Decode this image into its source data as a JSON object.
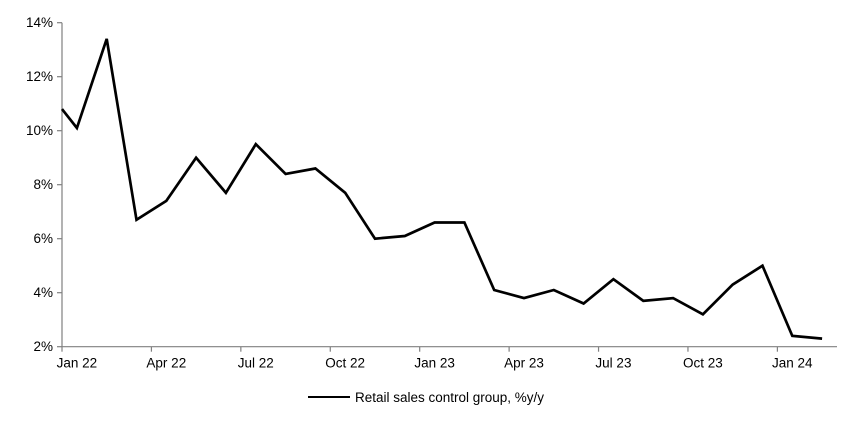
{
  "chart_data": {
    "type": "line",
    "title": "",
    "series_name": "Retail sales control group, %y/y",
    "categories": [
      "Jan 22",
      "Feb 22",
      "Mar 22",
      "Apr 22",
      "May 22",
      "Jun 22",
      "Jul 22",
      "Aug 22",
      "Sep 22",
      "Oct 22",
      "Nov 22",
      "Dec 22",
      "Jan 23",
      "Feb 23",
      "Mar 23",
      "Apr 23",
      "May 23",
      "Jun 23",
      "Jul 23",
      "Aug 23",
      "Sep 23",
      "Oct 23",
      "Nov 23",
      "Dec 23",
      "Jan 24",
      "Feb 24"
    ],
    "values": [
      10.1,
      13.4,
      6.7,
      7.4,
      9.0,
      7.7,
      9.5,
      8.4,
      8.6,
      7.7,
      6.0,
      6.1,
      6.6,
      6.6,
      4.1,
      3.8,
      4.1,
      3.6,
      4.5,
      3.7,
      3.8,
      3.2,
      4.3,
      5.0,
      2.4,
      2.3
    ],
    "lead_in_value_at_axis": 10.8,
    "xlabel": "",
    "ylabel": "",
    "ylim": [
      2,
      14
    ],
    "ytick_step": 2,
    "ytick_labels": [
      "2%",
      "4%",
      "6%",
      "8%",
      "10%",
      "12%",
      "14%"
    ],
    "xtick_labels": [
      "Jan 22",
      "Apr 22",
      "Jul 22",
      "Oct 22",
      "Jan 23",
      "Apr 23",
      "Jul 23",
      "Oct 23",
      "Jan 24"
    ],
    "xtick_month_interval": 3,
    "grid": "off",
    "legend_position": "bottom-center",
    "line_color": "#000000",
    "axis_color": "#808080"
  }
}
